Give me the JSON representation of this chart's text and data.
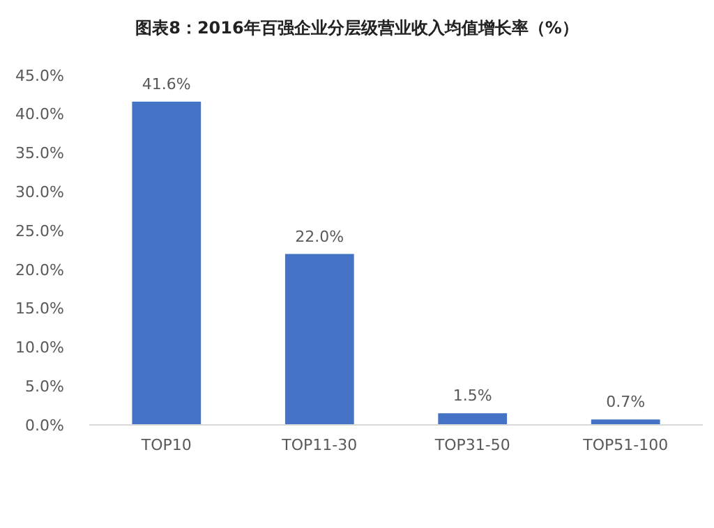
{
  "chart_data": {
    "type": "bar",
    "title": "图表8：2016年百强企业分层级营业收入均值增长率（%）",
    "categories": [
      "TOP10",
      "TOP11-30",
      "TOP31-50",
      "TOP51-100"
    ],
    "values": [
      41.6,
      22.0,
      1.5,
      0.7
    ],
    "value_labels": [
      "41.6%",
      "22.0%",
      "1.5%",
      "0.7%"
    ],
    "color": "#4472c4",
    "ylim": [
      0,
      45
    ],
    "yticks": [
      {
        "value": 0,
        "label": "0.0%"
      },
      {
        "value": 5,
        "label": "5.0%"
      },
      {
        "value": 10,
        "label": "10.0%"
      },
      {
        "value": 15,
        "label": "15.0%"
      },
      {
        "value": 20,
        "label": "20.0%"
      },
      {
        "value": 25,
        "label": "25.0%"
      },
      {
        "value": 30,
        "label": "30.0%"
      },
      {
        "value": 35,
        "label": "35.0%"
      },
      {
        "value": 40,
        "label": "40.0%"
      },
      {
        "value": 45,
        "label": "45.0%"
      }
    ],
    "data_labels": false
  }
}
